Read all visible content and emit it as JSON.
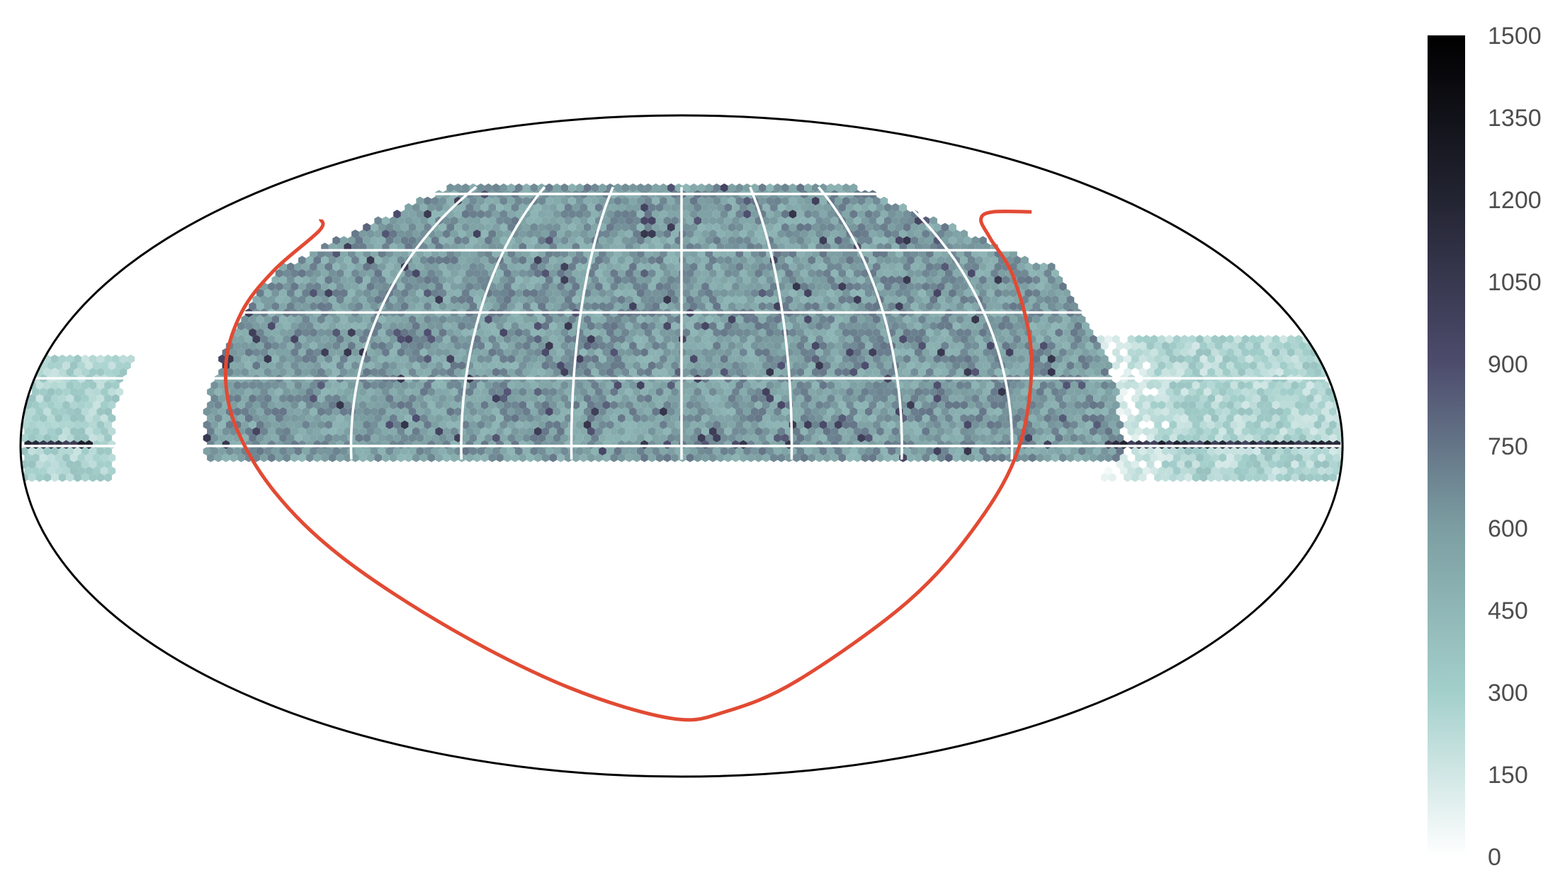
{
  "chart_data": {
    "type": "heatmap",
    "projection": "mollweide",
    "title": "",
    "xlabel": "",
    "ylabel": "",
    "grid": true,
    "binning": "hexagonal",
    "colormap": "bone_r",
    "colorbar": {
      "orientation": "vertical",
      "placement": "right",
      "vmin": 0,
      "vmax": 1500,
      "ticks": [
        0,
        150,
        300,
        450,
        600,
        750,
        900,
        1050,
        1200,
        1350,
        1500
      ],
      "tick_labels": [
        "0",
        "150",
        "300",
        "450",
        "600",
        "750",
        "900",
        "1050",
        "1200",
        "1350",
        "1500"
      ]
    },
    "colors": {
      "boundary": "#000000",
      "curve": "#e24a33",
      "grid": "#ffffff",
      "cmap_low": "#ffffff",
      "cmap_mid": "#a3cfcb",
      "cmap_high": "#000000"
    },
    "grid_lines": {
      "longitudes_deg": [
        -90,
        -60,
        -30,
        0,
        30,
        60,
        90
      ],
      "latitudes_deg": [
        0,
        15,
        30,
        45,
        60
      ]
    },
    "regions": [
      {
        "name": "main footprint",
        "lon_range_deg": [
          -130,
          120
        ],
        "lat_range_deg": [
          -3,
          62
        ],
        "typical_count": 600,
        "peak_count": 900
      },
      {
        "name": "left edge strip",
        "lon_range_deg": [
          -180,
          -155
        ],
        "lat_range_deg": [
          -8,
          20
        ],
        "typical_count": 350
      },
      {
        "name": "right edge strip",
        "lon_range_deg": [
          110,
          180
        ],
        "lat_range_deg": [
          -8,
          25
        ],
        "typical_count": 350
      },
      {
        "name": "equatorial stripe right",
        "lon_range_deg": [
          115,
          180
        ],
        "lat_range_deg": [
          -1,
          1
        ],
        "typical_count": 1200,
        "peak_count": 1500
      },
      {
        "name": "equatorial stripe left",
        "lon_range_deg": [
          -180,
          -160
        ],
        "lat_range_deg": [
          -1,
          1
        ],
        "typical_count": 1200
      }
    ],
    "curve": {
      "points": [
        [
          -135,
          53
        ],
        [
          -130,
          50
        ],
        [
          -131,
          40
        ],
        [
          -131,
          30
        ],
        [
          -128,
          18
        ],
        [
          -122,
          5
        ],
        [
          -112,
          -10
        ],
        [
          -98,
          -25
        ],
        [
          -75,
          -42
        ],
        [
          -45,
          -57
        ],
        [
          -5,
          -66
        ],
        [
          20,
          -64
        ],
        [
          45,
          -55
        ],
        [
          70,
          -35
        ],
        [
          83,
          -17
        ],
        [
          92,
          0
        ],
        [
          99,
          20
        ],
        [
          105,
          38
        ],
        [
          108,
          48
        ],
        [
          112,
          53
        ],
        [
          120,
          55
        ],
        [
          135,
          55
        ]
      ]
    }
  }
}
